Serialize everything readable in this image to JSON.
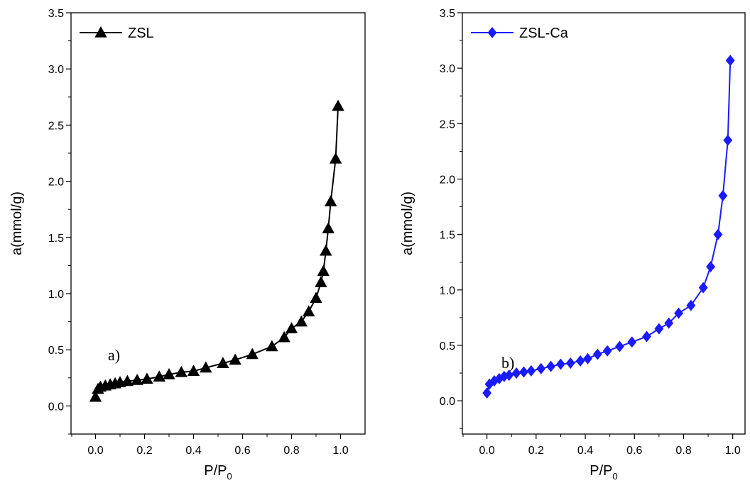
{
  "chart_data": [
    {
      "type": "line",
      "panel_label": "a)",
      "xlabel": "P/P",
      "xlabel_sub": "0",
      "ylabel": "a(mmol/g)",
      "xlim": [
        -0.1,
        1.1
      ],
      "ylim": [
        -0.25,
        3.5
      ],
      "xticks": [
        0.0,
        0.2,
        0.4,
        0.6,
        0.8,
        1.0
      ],
      "xtick_labels": [
        "0.0",
        "0.2",
        "0.4",
        "0.6",
        "0.8",
        "1.0"
      ],
      "yticks": [
        0.0,
        0.5,
        1.0,
        1.5,
        2.0,
        2.5,
        3.0,
        3.5
      ],
      "ytick_labels": [
        "0.0",
        "0.5",
        "1.0",
        "1.5",
        "2.0",
        "2.5",
        "3.0",
        "3.5"
      ],
      "legend_position": "top-left",
      "series": [
        {
          "name": "ZSL",
          "color": "#000000",
          "marker": "triangle",
          "x": [
            0.0,
            0.01,
            0.02,
            0.04,
            0.06,
            0.08,
            0.1,
            0.13,
            0.17,
            0.21,
            0.26,
            0.3,
            0.35,
            0.4,
            0.45,
            0.52,
            0.57,
            0.64,
            0.72,
            0.77,
            0.8,
            0.84,
            0.87,
            0.9,
            0.92,
            0.93,
            0.94,
            0.95,
            0.96,
            0.98
          ],
          "y": [
            0.08,
            0.15,
            0.17,
            0.18,
            0.19,
            0.2,
            0.21,
            0.22,
            0.23,
            0.24,
            0.26,
            0.28,
            0.3,
            0.31,
            0.34,
            0.38,
            0.41,
            0.46,
            0.53,
            0.61,
            0.69,
            0.75,
            0.84,
            0.96,
            1.1,
            1.2,
            1.38,
            1.58,
            1.82,
            2.2
          ]
        }
      ],
      "series_extra_point": {
        "x": 0.99,
        "y": 2.67
      }
    },
    {
      "type": "line",
      "panel_label": "b)",
      "xlabel": "P/P",
      "xlabel_sub": "0",
      "ylabel": "a(mmol/g)",
      "xlim": [
        -0.1,
        1.05
      ],
      "ylim": [
        -0.3,
        3.5
      ],
      "xticks": [
        0.0,
        0.2,
        0.4,
        0.6,
        0.8,
        1.0
      ],
      "xtick_labels": [
        "0.0",
        "0.2",
        "0.4",
        "0.6",
        "0.8",
        "1.0"
      ],
      "yticks": [
        0.0,
        0.5,
        1.0,
        1.5,
        2.0,
        2.5,
        3.0,
        3.5
      ],
      "ytick_labels": [
        "0.0",
        "0.5",
        "1.0",
        "1.5",
        "2.0",
        "2.5",
        "3.0",
        "3.5"
      ],
      "legend_position": "top-left",
      "series": [
        {
          "name": "ZSL-Ca",
          "color": "#1a1aff",
          "marker": "diamond",
          "x": [
            0.0,
            0.01,
            0.03,
            0.05,
            0.07,
            0.09,
            0.12,
            0.15,
            0.18,
            0.22,
            0.26,
            0.3,
            0.34,
            0.38,
            0.41,
            0.45,
            0.49,
            0.54,
            0.59,
            0.65,
            0.7,
            0.74,
            0.78,
            0.83,
            0.88,
            0.91,
            0.94,
            0.96,
            0.98,
            0.99
          ],
          "y": [
            0.07,
            0.15,
            0.18,
            0.2,
            0.22,
            0.23,
            0.25,
            0.26,
            0.27,
            0.29,
            0.31,
            0.33,
            0.34,
            0.36,
            0.38,
            0.42,
            0.45,
            0.49,
            0.53,
            0.58,
            0.65,
            0.7,
            0.79,
            0.86,
            1.02,
            1.21,
            1.5,
            1.85,
            2.35,
            3.07
          ]
        }
      ]
    }
  ]
}
